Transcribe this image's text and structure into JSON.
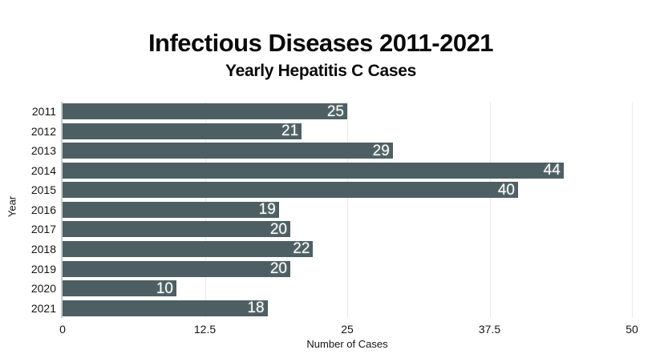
{
  "chart_data": {
    "type": "bar",
    "orientation": "horizontal",
    "title": "Infectious Diseases 2011-2021",
    "subtitle": "Yearly Hepatitis C Cases",
    "xlabel": "Number of Cases",
    "ylabel": "Year",
    "categories": [
      "2011",
      "2012",
      "2013",
      "2014",
      "2015",
      "2016",
      "2017",
      "2018",
      "2019",
      "2020",
      "2021"
    ],
    "values": [
      25,
      21,
      29,
      44,
      40,
      19,
      20,
      22,
      20,
      10,
      18
    ],
    "xlim": [
      0,
      50
    ],
    "xticks": [
      0,
      12.5,
      25,
      37.5,
      50
    ],
    "xtick_labels": [
      "0",
      "12.5",
      "25",
      "37.5",
      "50"
    ],
    "grid": true,
    "legend": "none",
    "bar_color": "#4d5f62",
    "value_label_color": "#ffffff",
    "gridline_color": "#e9e9e9",
    "axis_line_color": "#c6cacb"
  }
}
